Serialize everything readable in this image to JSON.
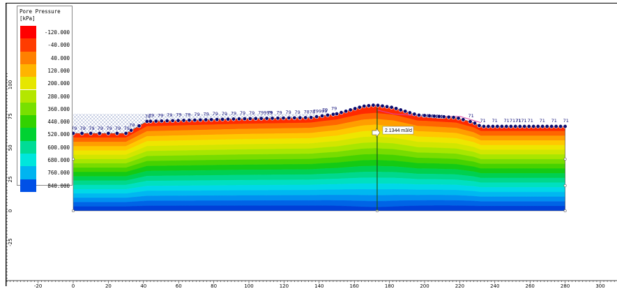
{
  "legend": {
    "title_line1": "Pore Pressure",
    "title_line2": "[kPa]",
    "entries": [
      {
        "label": "-120.000",
        "color": "#ff0000"
      },
      {
        "label": "-40.000",
        "color": "#ff3c00"
      },
      {
        "label": "40.000",
        "color": "#ff8000"
      },
      {
        "label": "120.000",
        "color": "#ffb400"
      },
      {
        "label": "200.000",
        "color": "#e6e600"
      },
      {
        "label": "280.000",
        "color": "#b4e600"
      },
      {
        "label": "360.000",
        "color": "#78e000"
      },
      {
        "label": "440.000",
        "color": "#32d200"
      },
      {
        "label": "520.000",
        "color": "#00d232"
      },
      {
        "label": "600.000",
        "color": "#00dc96"
      },
      {
        "label": "680.000",
        "color": "#00e6dc"
      },
      {
        "label": "760.000",
        "color": "#00b4f0"
      },
      {
        "label": "840.000",
        "color": "#0050e6"
      }
    ]
  },
  "axes": {
    "x_ticks": [
      "-20",
      "0",
      "20",
      "40",
      "60",
      "80",
      "100",
      "120",
      "140",
      "160",
      "180",
      "200",
      "220",
      "240",
      "260",
      "280",
      "300"
    ],
    "y_ticks": [
      "100",
      "75",
      "50",
      "25",
      "0",
      "-25"
    ]
  },
  "model": {
    "flux_label": "2.1344 m3/d",
    "colors": {
      "band_colors": [
        "#ff2a00",
        "#ff6600",
        "#ff9e00",
        "#ffc800",
        "#eee600",
        "#d2e600",
        "#a8e600",
        "#78dc00",
        "#46d200",
        "#14ca14",
        "#00d050",
        "#00d88c",
        "#00e0c0",
        "#00d8e8",
        "#00b8f0",
        "#0090f0",
        "#0064e6",
        "#0040d8"
      ],
      "node_fill": "#0a0a6e",
      "hatch": "#7a8ab8"
    },
    "left_point_labels": [
      "79",
      "79",
      "79",
      "79",
      "79",
      "79",
      "79",
      "79",
      "79"
    ],
    "mid_point_labels": [
      "79",
      "79",
      "79",
      "79",
      "79",
      "79",
      "79",
      "79",
      "79",
      "79",
      "79",
      "79",
      "79999",
      "79",
      "79",
      "79",
      "79",
      "7878",
      "79999",
      "79",
      "79"
    ],
    "right_point_labels": [
      "71",
      "71",
      "71",
      "71717171",
      "71",
      "71",
      "71",
      "71",
      "71"
    ]
  }
}
